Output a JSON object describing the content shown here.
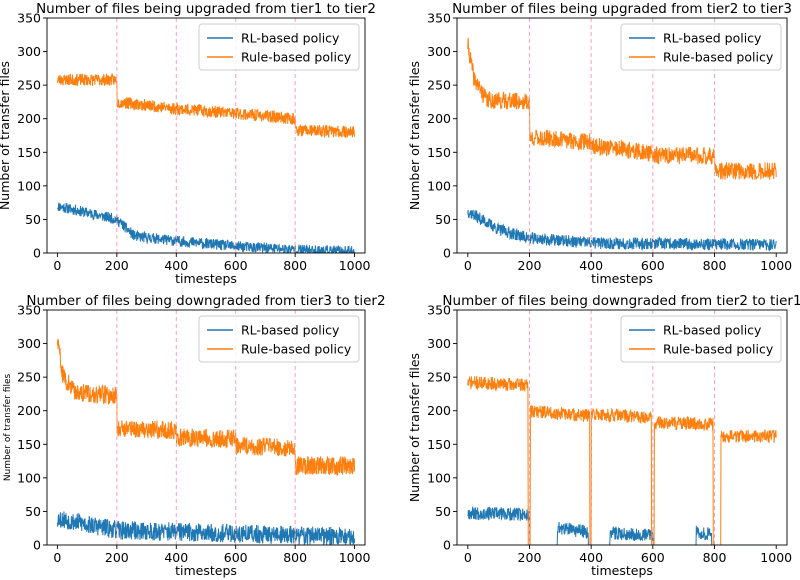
{
  "figure": {
    "colors": {
      "rl": "#1f77b4",
      "rule": "#ff7f0e",
      "vline": "#ff9fb0",
      "axis": "#000000",
      "legend_border": "#cccccc"
    }
  },
  "chart_data": [
    {
      "type": "line",
      "title": "Number of files being upgraded from tier1 to tier2",
      "xlabel": "timesteps",
      "ylabel": "Number of transfer files",
      "xlim": [
        -35,
        1035
      ],
      "ylim": [
        0,
        350
      ],
      "xticks": [
        "0",
        "200",
        "400",
        "600",
        "800",
        "1000"
      ],
      "yticks": [
        "0",
        "50",
        "100",
        "150",
        "200",
        "250",
        "300",
        "350"
      ],
      "vlines": [
        200,
        400,
        600,
        800
      ],
      "legend": {
        "position": "top-right",
        "entries": [
          "RL-based policy",
          "Rule-based policy"
        ]
      },
      "series": [
        {
          "name": "RL-based policy",
          "color": "#1f77b4",
          "noise": 8,
          "seed": 11,
          "segments": [
            [
              0,
              70
            ],
            [
              150,
              55
            ],
            [
              200,
              50
            ],
            [
              260,
              25
            ],
            [
              400,
              18
            ],
            [
              600,
              10
            ],
            [
              800,
              5
            ],
            [
              1000,
              2
            ]
          ]
        },
        {
          "name": "Rule-based policy",
          "color": "#ff7f0e",
          "noise": 9,
          "seed": 23,
          "segments": [
            [
              0,
              258
            ],
            [
              200,
              258
            ],
            [
              201,
              225
            ],
            [
              400,
              215
            ],
            [
              600,
              208
            ],
            [
              800,
              200
            ],
            [
              801,
              183
            ],
            [
              1000,
              180
            ]
          ]
        }
      ]
    },
    {
      "type": "line",
      "title": "Number of files being upgraded from tier2 to tier3",
      "xlabel": "timesteps",
      "ylabel": "Number of transfer files",
      "xlim": [
        -35,
        1035
      ],
      "ylim": [
        0,
        350
      ],
      "xticks": [
        "0",
        "200",
        "400",
        "600",
        "800",
        "1000"
      ],
      "yticks": [
        "0",
        "50",
        "100",
        "150",
        "200",
        "250",
        "300",
        "350"
      ],
      "vlines": [
        200,
        400,
        600,
        800
      ],
      "legend": {
        "position": "top-right",
        "entries": [
          "RL-based policy",
          "Rule-based policy"
        ]
      },
      "series": [
        {
          "name": "RL-based policy",
          "color": "#1f77b4",
          "noise": 9,
          "seed": 37,
          "segments": [
            [
              0,
              62
            ],
            [
              100,
              35
            ],
            [
              200,
              22
            ],
            [
              400,
              15
            ],
            [
              1000,
              12
            ]
          ]
        },
        {
          "name": "Rule-based policy",
          "color": "#ff7f0e",
          "noise": 13,
          "seed": 41,
          "segments": [
            [
              0,
              310
            ],
            [
              20,
              260
            ],
            [
              60,
              228
            ],
            [
              200,
              225
            ],
            [
              201,
              172
            ],
            [
              400,
              165
            ],
            [
              401,
              160
            ],
            [
              600,
              148
            ],
            [
              601,
              145
            ],
            [
              800,
              145
            ],
            [
              801,
              122
            ],
            [
              1000,
              122
            ]
          ]
        }
      ]
    },
    {
      "type": "line",
      "title": "Number of files being downgraded from tier3 to tier2",
      "xlabel": "timesteps",
      "ylabel": "Number of transfer files",
      "xlim": [
        -35,
        1035
      ],
      "ylim": [
        0,
        350
      ],
      "xticks": [
        "0",
        "200",
        "400",
        "600",
        "800",
        "1000"
      ],
      "yticks": [
        "0",
        "50",
        "100",
        "150",
        "200",
        "250",
        "300",
        "350"
      ],
      "vlines": [
        200,
        400,
        600,
        800
      ],
      "legend": {
        "position": "top-right",
        "entries": [
          "RL-based policy",
          "Rule-based policy"
        ]
      },
      "series": [
        {
          "name": "RL-based policy",
          "color": "#1f77b4",
          "noise": 14,
          "seed": 53,
          "segments": [
            [
              0,
              40
            ],
            [
              200,
              22
            ],
            [
              1000,
              12
            ]
          ]
        },
        {
          "name": "Rule-based policy",
          "color": "#ff7f0e",
          "noise": 14,
          "seed": 59,
          "segments": [
            [
              0,
              305
            ],
            [
              20,
              250
            ],
            [
              60,
              228
            ],
            [
              200,
              222
            ],
            [
              201,
              175
            ],
            [
              400,
              170
            ],
            [
              401,
              160
            ],
            [
              600,
              158
            ],
            [
              601,
              148
            ],
            [
              800,
              145
            ],
            [
              801,
              118
            ],
            [
              1000,
              118
            ]
          ]
        }
      ]
    },
    {
      "type": "line",
      "title": "Number of files being downgraded from tier2 to tier1",
      "xlabel": "timesteps",
      "ylabel": "Number of transfer files",
      "xlim": [
        -35,
        1035
      ],
      "ylim": [
        0,
        350
      ],
      "xticks": [
        "0",
        "200",
        "400",
        "600",
        "800",
        "1000"
      ],
      "yticks": [
        "0",
        "50",
        "100",
        "150",
        "200",
        "250",
        "300",
        "350"
      ],
      "vlines": [
        200,
        400,
        600,
        800
      ],
      "legend": {
        "position": "top-right",
        "entries": [
          "RL-based policy",
          "Rule-based policy"
        ]
      },
      "series": [
        {
          "name": "RL-based policy",
          "color": "#1f77b4",
          "noise": 10,
          "seed": 67,
          "segments": [
            [
              0,
              48
            ],
            [
              200,
              45
            ],
            [
              201,
              0
            ],
            [
              290,
              0
            ],
            [
              291,
              25
            ],
            [
              390,
              20
            ],
            [
              391,
              0
            ],
            [
              460,
              0
            ],
            [
              461,
              18
            ],
            [
              600,
              15
            ],
            [
              601,
              0
            ],
            [
              740,
              0
            ],
            [
              741,
              20
            ],
            [
              790,
              15
            ],
            [
              791,
              0
            ],
            [
              1000,
              0
            ]
          ]
        },
        {
          "name": "Rule-based policy",
          "color": "#ff7f0e",
          "noise": 10,
          "seed": 71,
          "segments": [
            [
              0,
              242
            ],
            [
              195,
              238
            ],
            [
              196,
              0
            ],
            [
              202,
              0
            ],
            [
              203,
              200
            ],
            [
              395,
              192
            ],
            [
              396,
              0
            ],
            [
              400,
              0
            ],
            [
              401,
              195
            ],
            [
              595,
              190
            ],
            [
              596,
              0
            ],
            [
              604,
              0
            ],
            [
              605,
              182
            ],
            [
              795,
              180
            ],
            [
              796,
              0
            ],
            [
              820,
              0
            ],
            [
              821,
              162
            ],
            [
              1000,
              162
            ]
          ]
        }
      ]
    }
  ]
}
